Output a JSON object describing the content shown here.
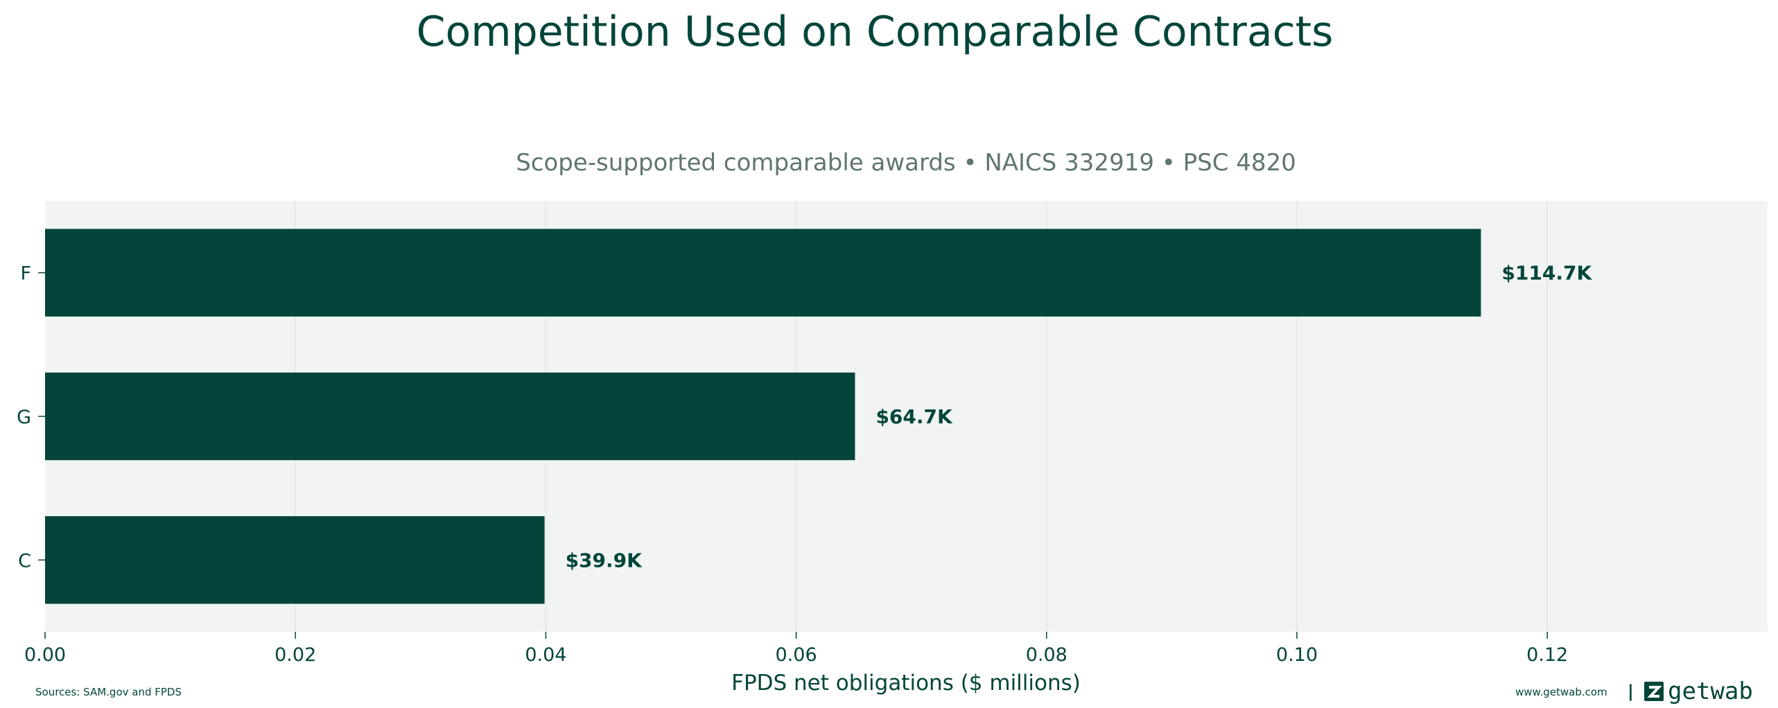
{
  "chart_data": {
    "type": "bar",
    "orientation": "horizontal",
    "title": "Competition Used on Comparable Contracts",
    "subtitle": "Scope-supported comparable awards • NAICS 332919 • PSC 4820",
    "xlabel": "FPDS net obligations ($ millions)",
    "ylabel": "",
    "categories": [
      "F",
      "G",
      "C"
    ],
    "values": [
      0.1147,
      0.0647,
      0.0399
    ],
    "value_labels": [
      "$114.7K",
      "$64.7K",
      "$39.9K"
    ],
    "xlim": [
      0,
      0.1376
    ],
    "xticks": [
      0.0,
      0.02,
      0.04,
      0.06,
      0.08,
      0.1,
      0.12
    ],
    "xtick_labels": [
      "0.00",
      "0.02",
      "0.04",
      "0.06",
      "0.08",
      "0.10",
      "0.12"
    ],
    "grid": "vertical",
    "bar_color": "#03453a",
    "plot_background": "#f1f4f3",
    "text_color": "#03453a"
  },
  "footer": {
    "sources": "Sources: SAM.gov and FPDS",
    "website": "www.getwab.com",
    "separator": "|",
    "brand": "getwab",
    "brand_icon": "getwab-logo-icon"
  }
}
